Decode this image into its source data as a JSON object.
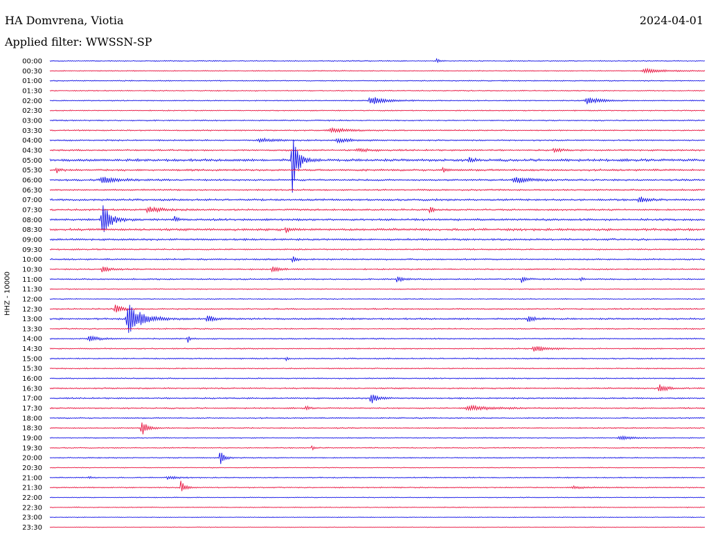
{
  "header": {
    "station": "HA Domvrena, Viotia",
    "date": "2024-04-01",
    "filter": "Applied filter: WWSSN-SP"
  },
  "chart_data": {
    "type": "line",
    "title": "HA Domvrena, Viotia",
    "subtitle": "Applied filter: WWSSN-SP",
    "ylabel": "HHZ - 10000",
    "grid": false,
    "colors": {
      "even_row": "#1010e6",
      "odd_row": "#e8103c"
    },
    "rows": [
      "00:00",
      "00:30",
      "01:00",
      "01:30",
      "02:00",
      "02:30",
      "03:00",
      "03:30",
      "04:00",
      "04:30",
      "05:00",
      "05:30",
      "06:00",
      "06:30",
      "07:00",
      "07:30",
      "08:00",
      "08:30",
      "09:00",
      "09:30",
      "10:00",
      "10:30",
      "11:00",
      "11:30",
      "12:00",
      "12:30",
      "13:00",
      "13:30",
      "14:00",
      "14:30",
      "15:00",
      "15:30",
      "16:00",
      "16:30",
      "17:00",
      "17:30",
      "18:00",
      "18:30",
      "19:00",
      "19:30",
      "20:00",
      "20:30",
      "21:00",
      "21:30",
      "22:00",
      "22:30",
      "23:00",
      "23:30"
    ],
    "noise_level": [
      0.6,
      0.5,
      0.6,
      0.6,
      0.6,
      0.6,
      0.7,
      0.7,
      0.8,
      0.9,
      1.4,
      1.1,
      1.0,
      0.9,
      1.1,
      1.0,
      1.2,
      1.3,
      1.1,
      0.8,
      0.9,
      0.8,
      0.8,
      0.6,
      0.6,
      0.8,
      1.0,
      0.7,
      0.7,
      0.7,
      0.7,
      0.6,
      0.7,
      0.8,
      0.8,
      0.8,
      0.7,
      0.7,
      0.6,
      0.6,
      0.6,
      0.5,
      0.6,
      0.6,
      0.5,
      0.5,
      0.4,
      0.4
    ],
    "events": [
      {
        "row": 0,
        "t": 0.59,
        "amp": 4,
        "dur": 0.004
      },
      {
        "row": 1,
        "t": 0.91,
        "amp": 3,
        "dur": 0.03
      },
      {
        "row": 4,
        "t": 0.49,
        "amp": 6,
        "dur": 0.02
      },
      {
        "row": 4,
        "t": 0.82,
        "amp": 5,
        "dur": 0.02
      },
      {
        "row": 7,
        "t": 0.43,
        "amp": 3,
        "dur": 0.03
      },
      {
        "row": 8,
        "t": 0.32,
        "amp": 3,
        "dur": 0.02
      },
      {
        "row": 8,
        "t": 0.44,
        "amp": 3,
        "dur": 0.02
      },
      {
        "row": 9,
        "t": 0.47,
        "amp": 2,
        "dur": 0.02
      },
      {
        "row": 9,
        "t": 0.77,
        "amp": 3,
        "dur": 0.01
      },
      {
        "row": 10,
        "t": 0.37,
        "amp": 48,
        "dur": 0.008
      },
      {
        "row": 10,
        "t": 0.64,
        "amp": 5,
        "dur": 0.006
      },
      {
        "row": 11,
        "t": 0.01,
        "amp": 4,
        "dur": 0.006
      },
      {
        "row": 11,
        "t": 0.6,
        "amp": 4,
        "dur": 0.006
      },
      {
        "row": 12,
        "t": 0.08,
        "amp": 5,
        "dur": 0.02
      },
      {
        "row": 12,
        "t": 0.71,
        "amp": 5,
        "dur": 0.02
      },
      {
        "row": 14,
        "t": 0.9,
        "amp": 5,
        "dur": 0.01
      },
      {
        "row": 15,
        "t": 0.15,
        "amp": 4,
        "dur": 0.02
      },
      {
        "row": 15,
        "t": 0.58,
        "amp": 6,
        "dur": 0.004
      },
      {
        "row": 16,
        "t": 0.08,
        "amp": 24,
        "dur": 0.012
      },
      {
        "row": 16,
        "t": 0.19,
        "amp": 5,
        "dur": 0.004
      },
      {
        "row": 17,
        "t": 0.36,
        "amp": 6,
        "dur": 0.004
      },
      {
        "row": 20,
        "t": 0.37,
        "amp": 6,
        "dur": 0.006
      },
      {
        "row": 21,
        "t": 0.08,
        "amp": 5,
        "dur": 0.01
      },
      {
        "row": 21,
        "t": 0.34,
        "amp": 4,
        "dur": 0.01
      },
      {
        "row": 22,
        "t": 0.53,
        "amp": 5,
        "dur": 0.008
      },
      {
        "row": 22,
        "t": 0.72,
        "amp": 5,
        "dur": 0.006
      },
      {
        "row": 22,
        "t": 0.81,
        "amp": 4,
        "dur": 0.004
      },
      {
        "row": 25,
        "t": 0.1,
        "amp": 6,
        "dur": 0.01
      },
      {
        "row": 26,
        "t": 0.12,
        "amp": 22,
        "dur": 0.02
      },
      {
        "row": 26,
        "t": 0.24,
        "amp": 5,
        "dur": 0.01
      },
      {
        "row": 26,
        "t": 0.73,
        "amp": 4,
        "dur": 0.01
      },
      {
        "row": 28,
        "t": 0.06,
        "amp": 4,
        "dur": 0.015
      },
      {
        "row": 28,
        "t": 0.21,
        "amp": 8,
        "dur": 0.003
      },
      {
        "row": 29,
        "t": 0.74,
        "amp": 4,
        "dur": 0.02
      },
      {
        "row": 30,
        "t": 0.36,
        "amp": 4,
        "dur": 0.003
      },
      {
        "row": 33,
        "t": 0.93,
        "amp": 7,
        "dur": 0.01
      },
      {
        "row": 34,
        "t": 0.49,
        "amp": 8,
        "dur": 0.01
      },
      {
        "row": 35,
        "t": 0.39,
        "amp": 5,
        "dur": 0.004
      },
      {
        "row": 35,
        "t": 0.64,
        "amp": 4,
        "dur": 0.03
      },
      {
        "row": 37,
        "t": 0.14,
        "amp": 12,
        "dur": 0.008
      },
      {
        "row": 38,
        "t": 0.87,
        "amp": 3,
        "dur": 0.015
      },
      {
        "row": 39,
        "t": 0.4,
        "amp": 4,
        "dur": 0.003
      },
      {
        "row": 40,
        "t": 0.26,
        "amp": 11,
        "dur": 0.006
      },
      {
        "row": 42,
        "t": 0.06,
        "amp": 2,
        "dur": 0.005
      },
      {
        "row": 42,
        "t": 0.18,
        "amp": 2,
        "dur": 0.015
      },
      {
        "row": 43,
        "t": 0.2,
        "amp": 10,
        "dur": 0.006
      },
      {
        "row": 43,
        "t": 0.8,
        "amp": 2,
        "dur": 0.02
      }
    ]
  }
}
